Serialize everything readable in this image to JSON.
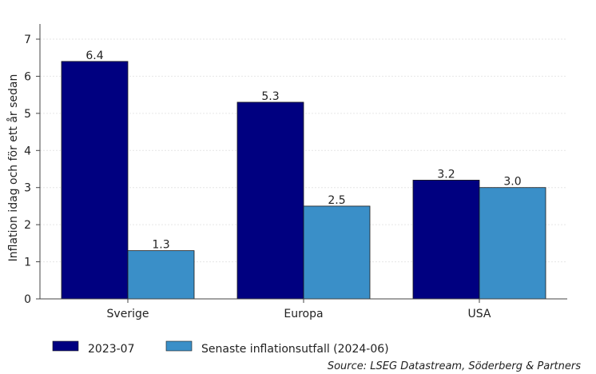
{
  "chart_data": {
    "type": "bar",
    "categories": [
      "Sverige",
      "Europa",
      "USA"
    ],
    "series": [
      {
        "name": "2023-07",
        "values": [
          6.4,
          5.3,
          3.2
        ],
        "color": "#000080"
      },
      {
        "name": "Senaste inflationsutfall (2024-06)",
        "values": [
          1.3,
          2.5,
          3.0
        ],
        "color": "#3a8fc8"
      }
    ],
    "data_labels": [
      [
        "6.4",
        "5.3",
        "3.2"
      ],
      [
        "1.3",
        "2.5",
        "3.0"
      ]
    ],
    "ylabel": "Inflation idag och för ett år sedan",
    "ylim": [
      0,
      7
    ],
    "yticks": [
      0,
      1,
      2,
      3,
      4,
      5,
      6,
      7
    ],
    "grid": true,
    "legend_position": "bottom-left",
    "source": "Source: LSEG Datastream, Söderberg & Partners"
  }
}
